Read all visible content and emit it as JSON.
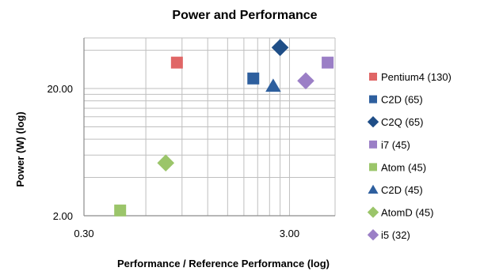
{
  "chart_data": {
    "type": "scatter",
    "title": "Power and Performance",
    "xlabel": "Performance / Reference Performance (log)",
    "ylabel": "Power (W) (log)",
    "x_scale": "log",
    "y_scale": "log",
    "xlim": [
      0.3,
      5
    ],
    "ylim": [
      2,
      50
    ],
    "x_ticks": [
      "0.30",
      "3.00"
    ],
    "y_ticks": [
      "2.00",
      "20.00"
    ],
    "grid": true,
    "legend_position": "right",
    "series": [
      {
        "name": "Pentium4 (130)",
        "marker": "square",
        "color": "#E06666",
        "x": [
          0.85
        ],
        "y": [
          32
        ]
      },
      {
        "name": "C2D (65)",
        "marker": "square",
        "color": "#2E5F9E",
        "x": [
          2.0
        ],
        "y": [
          24
        ]
      },
      {
        "name": "C2Q (65)",
        "marker": "diamond",
        "color": "#1F4E87",
        "x": [
          2.7
        ],
        "y": [
          42
        ]
      },
      {
        "name": "i7 (45)",
        "marker": "square",
        "color": "#9B7FC6",
        "x": [
          4.6
        ],
        "y": [
          32
        ]
      },
      {
        "name": "Atom (45)",
        "marker": "square",
        "color": "#9BC56A",
        "x": [
          0.45
        ],
        "y": [
          2.2
        ]
      },
      {
        "name": "C2D (45)",
        "marker": "triangle",
        "color": "#2E5F9E",
        "x": [
          2.5
        ],
        "y": [
          21
        ]
      },
      {
        "name": "AtomD (45)",
        "marker": "diamond",
        "color": "#9BC56A",
        "x": [
          0.75
        ],
        "y": [
          5.2
        ]
      },
      {
        "name": "i5 (32)",
        "marker": "diamond",
        "color": "#9B7FC6",
        "x": [
          3.6
        ],
        "y": [
          23
        ]
      }
    ]
  }
}
